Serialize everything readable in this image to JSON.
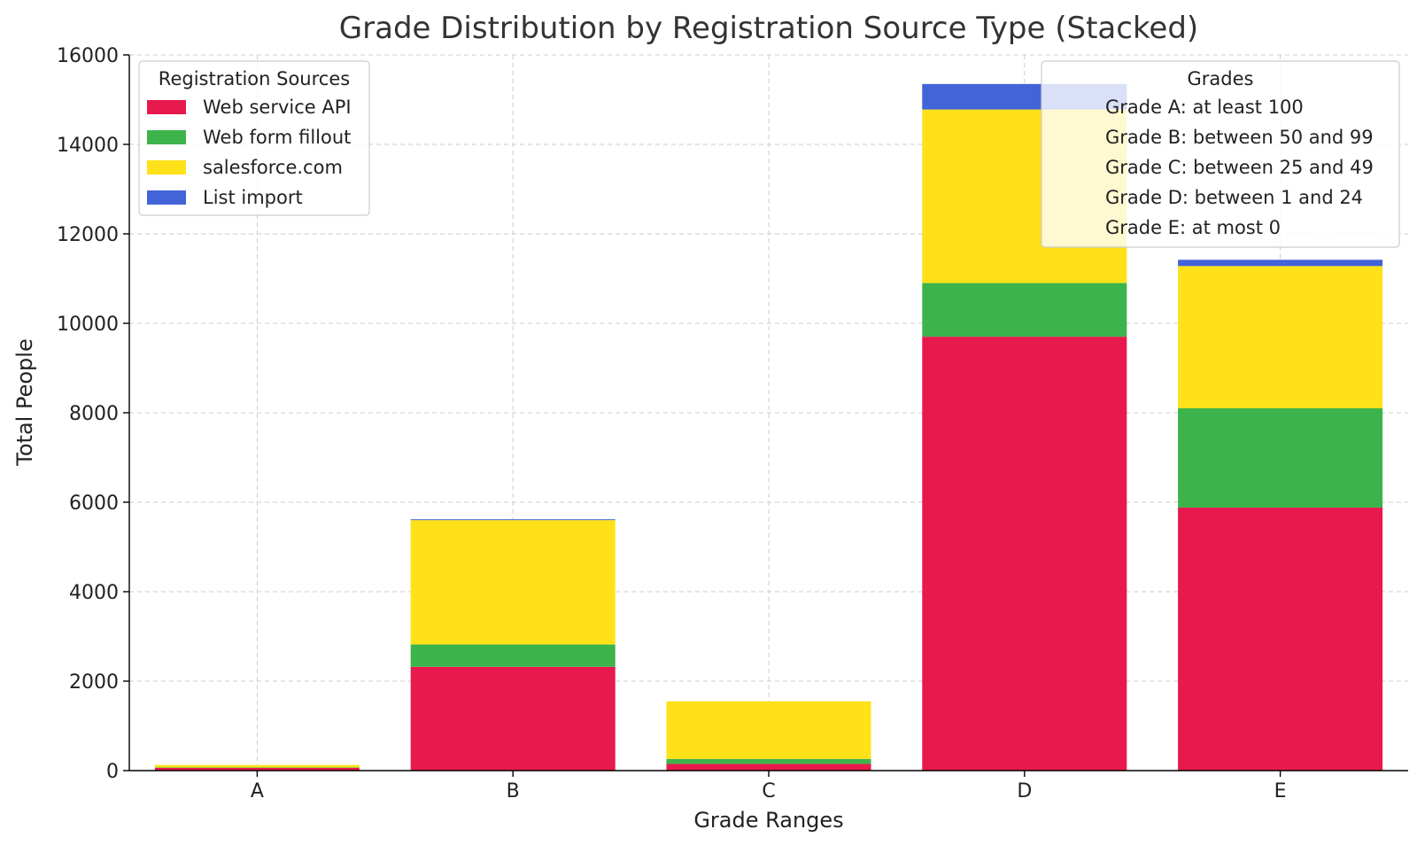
{
  "chart_data": {
    "type": "bar",
    "stacked": true,
    "title": "Grade Distribution by Registration Source Type (Stacked)",
    "xlabel": "Grade Ranges",
    "ylabel": "Total People",
    "ylim": [
      0,
      16000
    ],
    "yticks": [
      0,
      2000,
      4000,
      6000,
      8000,
      10000,
      12000,
      14000,
      16000
    ],
    "grid": true,
    "categories": [
      "A",
      "B",
      "C",
      "D",
      "E"
    ],
    "series": [
      {
        "name": "Web service API",
        "color": "#e8194c",
        "values": [
          60,
          2320,
          150,
          9700,
          5880
        ]
      },
      {
        "name": "Web form fillout",
        "color": "#3cb44b",
        "values": [
          10,
          500,
          110,
          1200,
          2220
        ]
      },
      {
        "name": "salesforce.com",
        "color": "#ffe119",
        "values": [
          55,
          2780,
          1290,
          3880,
          3180
        ]
      },
      {
        "name": "List import",
        "color": "#4363d8",
        "values": [
          0,
          20,
          0,
          570,
          140
        ]
      }
    ],
    "legend_sources": {
      "title": "Registration Sources",
      "placement": "top-left"
    },
    "legend_grades": {
      "title": "Grades",
      "placement": "top-right",
      "entries": [
        "Grade A: at least 100",
        "Grade B: between 50 and 99",
        "Grade C: between 25 and 49",
        "Grade D: between 1 and 24",
        "Grade E: at most 0"
      ]
    }
  }
}
